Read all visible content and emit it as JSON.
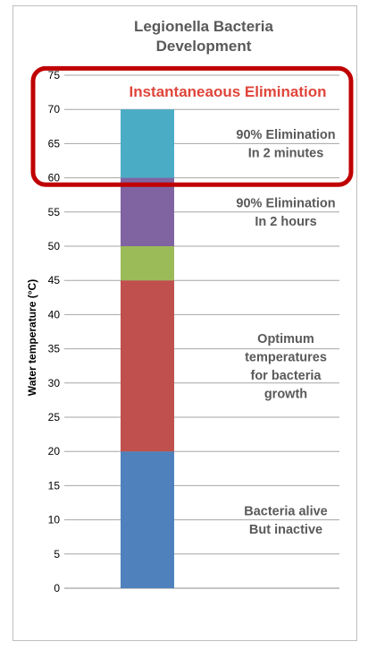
{
  "chart_data": {
    "type": "bar",
    "title_lines": [
      "Legionella Bacteria",
      "Development"
    ],
    "ylabel": "Water temperature (°C)",
    "xlabel": "",
    "ylim": [
      0,
      75
    ],
    "yticks": [
      "0",
      "5",
      "10",
      "15",
      "20",
      "25",
      "30",
      "35",
      "40",
      "45",
      "50",
      "55",
      "60",
      "65",
      "70",
      "75"
    ],
    "grid": "horizontal-major",
    "stacked_segments": [
      {
        "from": 0,
        "to": 20,
        "color": "#4f81bd"
      },
      {
        "from": 20,
        "to": 45,
        "color": "#c0504d"
      },
      {
        "from": 45,
        "to": 50,
        "color": "#9bbb59"
      },
      {
        "from": 50,
        "to": 60,
        "color": "#8064a2"
      },
      {
        "from": 60,
        "to": 70,
        "color": "#4bacc6"
      }
    ],
    "annotations": [
      {
        "lines": [
          "Instantaneaous Elimination"
        ],
        "y": 72.5,
        "style": "red"
      },
      {
        "lines": [
          "90% Elimination",
          "In 2 minutes"
        ],
        "y": 65,
        "style": "gray"
      },
      {
        "lines": [
          "90% Elimination",
          "In 2 hours"
        ],
        "y": 55,
        "style": "gray"
      },
      {
        "lines": [
          "Optimum",
          "temperatures",
          "for bacteria",
          "growth"
        ],
        "y": 32.5,
        "style": "gray"
      },
      {
        "lines": [
          "Bacteria  alive",
          "But inactive"
        ],
        "y": 10,
        "style": "gray"
      }
    ],
    "highlight": {
      "from": 59,
      "to": 76,
      "color": "#c00000"
    }
  }
}
